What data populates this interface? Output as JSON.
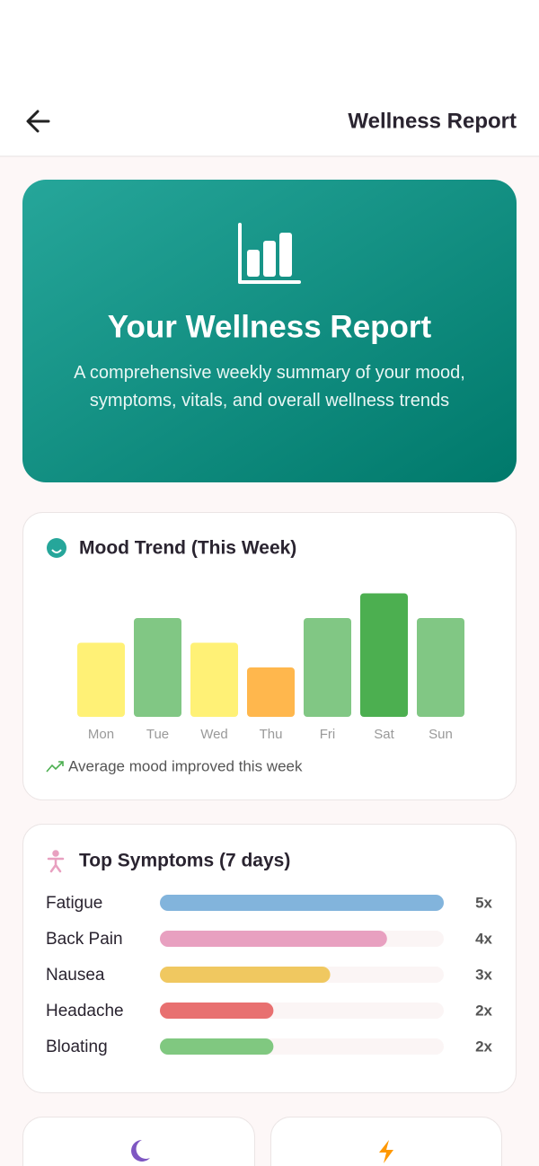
{
  "header": {
    "title": "Wellness Report"
  },
  "hero": {
    "title": "Your Wellness Report",
    "subtitle": "A comprehensive weekly summary of your mood, symptoms, vitals, and overall wellness trends"
  },
  "chart_data": [
    {
      "type": "bar",
      "title": "Mood Trend (This Week)",
      "categories": [
        "Mon",
        "Tue",
        "Wed",
        "Thu",
        "Fri",
        "Sat",
        "Sun"
      ],
      "values": [
        3,
        4,
        3,
        2,
        4,
        5,
        4
      ],
      "colors": [
        "#fff176",
        "#81c784",
        "#fff176",
        "#ffb74d",
        "#81c784",
        "#4caf50",
        "#81c784"
      ],
      "ylim": [
        0,
        5
      ],
      "note": "Average mood improved this week"
    },
    {
      "type": "hbar",
      "title": "Top Symptoms (7 days)",
      "categories": [
        "Fatigue",
        "Back Pain",
        "Nausea",
        "Headache",
        "Bloating"
      ],
      "values": [
        5,
        4,
        3,
        2,
        2
      ],
      "value_labels": [
        "5x",
        "4x",
        "3x",
        "2x",
        "2x"
      ],
      "colors": [
        "#82b4dc",
        "#e8a0c0",
        "#f0c860",
        "#e87070",
        "#80c880"
      ],
      "xlim": [
        0,
        5
      ]
    }
  ]
}
